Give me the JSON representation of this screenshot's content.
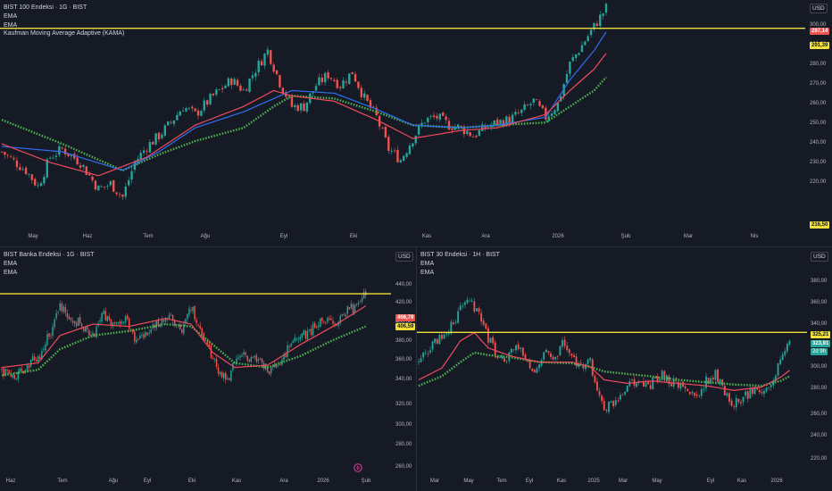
{
  "colors": {
    "bg": "#161a25",
    "grid": "#1f2330",
    "up": "#26a69a",
    "down": "#ef5350",
    "ema_fast": "#ef4b5d",
    "ema_slow": "#2f6ef0",
    "kama": "#4caf50",
    "level": "#f2e03a",
    "axis_text": "#b2b5be"
  },
  "charts": [
    {
      "id": "bist100",
      "legend": [
        "BIST 100 Endeksi · 1G · BIST",
        "EMA",
        "EMA",
        "Kaufman Moving Average Adaptive (KAMA)"
      ],
      "currency": "USD",
      "y_ticks": [
        "300,00",
        "290,00",
        "280,00",
        "270,00",
        "260,00",
        "250,00",
        "240,00",
        "230,00",
        "220,00"
      ],
      "x_ticks": [
        "May",
        "Haz",
        "Tem",
        "Ağu",
        "Eyl",
        "Eki",
        "Kas",
        "Ara",
        "2026",
        "Şub",
        "Mar",
        "Nis"
      ],
      "price_labels": [
        {
          "text": "297,14",
          "kind": "last",
          "value": 297.14
        },
        {
          "text": "291,39",
          "kind": "level",
          "value": 291.39
        },
        {
          "text": "216,50",
          "kind": "low",
          "value": 216.5
        }
      ],
      "chart_data": {
        "type": "candlestick",
        "ylim": [
          216.5,
          301
        ],
        "last": 297.14,
        "horizontal_level": 291.39,
        "anchors_close": [
          [
            0,
            245
          ],
          [
            8,
            238
          ],
          [
            12,
            232
          ],
          [
            16,
            243
          ],
          [
            20,
            246
          ],
          [
            26,
            241
          ],
          [
            32,
            231
          ],
          [
            36,
            233
          ],
          [
            40,
            228
          ],
          [
            44,
            241
          ],
          [
            48,
            247
          ],
          [
            52,
            251
          ],
          [
            56,
            256
          ],
          [
            60,
            262
          ],
          [
            64,
            259
          ],
          [
            70,
            266
          ],
          [
            76,
            272
          ],
          [
            80,
            268
          ],
          [
            84,
            276
          ],
          [
            88,
            283
          ],
          [
            92,
            271
          ],
          [
            96,
            262
          ],
          [
            100,
            262
          ],
          [
            104,
            270
          ],
          [
            108,
            274
          ],
          [
            112,
            270
          ],
          [
            116,
            275
          ],
          [
            120,
            265
          ],
          [
            124,
            258
          ],
          [
            128,
            246
          ],
          [
            132,
            242
          ],
          [
            136,
            250
          ],
          [
            140,
            257
          ],
          [
            144,
            258
          ],
          [
            148,
            255
          ],
          [
            152,
            254
          ],
          [
            156,
            251
          ],
          [
            160,
            254
          ],
          [
            164,
            256
          ],
          [
            168,
            257
          ],
          [
            172,
            260
          ],
          [
            176,
            264
          ],
          [
            180,
            258
          ],
          [
            184,
            263
          ],
          [
            188,
            278
          ],
          [
            192,
            285
          ],
          [
            196,
            292
          ],
          [
            200,
            299
          ]
        ],
        "ema_fast_anchors": [
          [
            0,
            248
          ],
          [
            16,
            241
          ],
          [
            32,
            236
          ],
          [
            48,
            243
          ],
          [
            64,
            255
          ],
          [
            80,
            262
          ],
          [
            90,
            268
          ],
          [
            96,
            266
          ],
          [
            110,
            264
          ],
          [
            124,
            257
          ],
          [
            136,
            250
          ],
          [
            152,
            253
          ],
          [
            164,
            254
          ],
          [
            180,
            259
          ],
          [
            188,
            268
          ],
          [
            196,
            276
          ],
          [
            200,
            282
          ]
        ],
        "ema_slow_anchors": [
          [
            0,
            247
          ],
          [
            20,
            245
          ],
          [
            40,
            238
          ],
          [
            52,
            245
          ],
          [
            64,
            254
          ],
          [
            80,
            260
          ],
          [
            90,
            265
          ],
          [
            96,
            268
          ],
          [
            110,
            267
          ],
          [
            124,
            261
          ],
          [
            136,
            255
          ],
          [
            152,
            254
          ],
          [
            164,
            255
          ],
          [
            180,
            258
          ],
          [
            188,
            272
          ],
          [
            196,
            283
          ],
          [
            200,
            290
          ]
        ],
        "kama_anchors": [
          [
            0,
            257
          ],
          [
            20,
            248
          ],
          [
            40,
            238
          ],
          [
            52,
            244
          ],
          [
            64,
            249
          ],
          [
            80,
            254
          ],
          [
            90,
            262
          ],
          [
            96,
            266
          ],
          [
            110,
            265
          ],
          [
            124,
            260
          ],
          [
            136,
            255
          ],
          [
            152,
            254
          ],
          [
            164,
            255
          ],
          [
            180,
            256
          ],
          [
            188,
            262
          ],
          [
            196,
            268
          ],
          [
            200,
            273
          ]
        ]
      }
    },
    {
      "id": "bist_banka",
      "legend": [
        "BIST Banka Endeksi · 1G · BIST",
        "EMA",
        "EMA"
      ],
      "currency": "USD",
      "y_ticks": [
        "440,00",
        "420,00",
        "400,00",
        "380,00",
        "360,00",
        "340,00",
        "320,00",
        "300,00",
        "280,00",
        "260,00"
      ],
      "x_ticks": [
        "Haz",
        "Tem",
        "Ağu",
        "Eyl",
        "Eki",
        "Kas",
        "Ara",
        "2026",
        "Şub"
      ],
      "price_labels": [
        {
          "text": "406,79",
          "kind": "last",
          "value": 406.79
        },
        {
          "text": "406,59",
          "kind": "level",
          "value": 406.59
        }
      ],
      "chart_data": {
        "type": "candlestick",
        "ylim": [
          258,
          445
        ],
        "last": 406.79,
        "horizontal_level": 406.59,
        "anchors_close": [
          [
            0,
            340
          ],
          [
            8,
            335
          ],
          [
            14,
            345
          ],
          [
            20,
            350
          ],
          [
            26,
            370
          ],
          [
            32,
            395
          ],
          [
            38,
            385
          ],
          [
            44,
            380
          ],
          [
            50,
            368
          ],
          [
            56,
            390
          ],
          [
            62,
            378
          ],
          [
            68,
            385
          ],
          [
            74,
            365
          ],
          [
            80,
            375
          ],
          [
            86,
            382
          ],
          [
            92,
            390
          ],
          [
            98,
            372
          ],
          [
            104,
            395
          ],
          [
            110,
            370
          ],
          [
            116,
            350
          ],
          [
            120,
            335
          ],
          [
            124,
            330
          ],
          [
            128,
            345
          ],
          [
            134,
            352
          ],
          [
            140,
            348
          ],
          [
            146,
            340
          ],
          [
            152,
            345
          ],
          [
            158,
            360
          ],
          [
            164,
            368
          ],
          [
            170,
            375
          ],
          [
            176,
            385
          ],
          [
            182,
            380
          ],
          [
            188,
            390
          ],
          [
            194,
            395
          ],
          [
            200,
            408
          ]
        ],
        "ema_fast_anchors": [
          [
            0,
            342
          ],
          [
            20,
            346
          ],
          [
            32,
            370
          ],
          [
            50,
            380
          ],
          [
            70,
            378
          ],
          [
            90,
            385
          ],
          [
            104,
            380
          ],
          [
            116,
            355
          ],
          [
            128,
            342
          ],
          [
            146,
            344
          ],
          [
            164,
            362
          ],
          [
            182,
            378
          ],
          [
            200,
            396
          ]
        ],
        "kama_anchors": [
          [
            0,
            335
          ],
          [
            20,
            340
          ],
          [
            32,
            358
          ],
          [
            50,
            370
          ],
          [
            70,
            374
          ],
          [
            90,
            380
          ],
          [
            104,
            378
          ],
          [
            116,
            362
          ],
          [
            128,
            346
          ],
          [
            146,
            342
          ],
          [
            164,
            352
          ],
          [
            182,
            366
          ],
          [
            200,
            378
          ]
        ]
      }
    },
    {
      "id": "bist30",
      "legend": [
        "BIST 30 Endeksi · 1H · BIST",
        "EMA",
        "EMA"
      ],
      "currency": "USD",
      "y_ticks": [
        "380,00",
        "360,00",
        "340,00",
        "320,00",
        "300,00",
        "280,00",
        "260,00",
        "240,00",
        "220,00"
      ],
      "x_ticks": [
        "Mar",
        "May",
        "Tem",
        "Eyl",
        "Kas",
        "2025",
        "Mar",
        "May",
        "Eyl",
        "Kas",
        "2026"
      ],
      "price_labels": [
        {
          "text": "325,21",
          "kind": "level",
          "value": 325.21
        },
        {
          "text": "323,91",
          "kind": "last",
          "value": 323.91
        },
        {
          "text": "2d 9h",
          "kind": "countdown"
        }
      ],
      "chart_data": {
        "type": "candlestick",
        "ylim": [
          212,
          395
        ],
        "last": 323.91,
        "horizontal_level": 325.21,
        "anchors_close": [
          [
            0,
            300
          ],
          [
            6,
            315
          ],
          [
            12,
            325
          ],
          [
            18,
            345
          ],
          [
            22,
            350
          ],
          [
            26,
            340
          ],
          [
            30,
            320
          ],
          [
            34,
            305
          ],
          [
            38,
            300
          ],
          [
            42,
            315
          ],
          [
            46,
            300
          ],
          [
            50,
            290
          ],
          [
            54,
            310
          ],
          [
            58,
            300
          ],
          [
            62,
            315
          ],
          [
            66,
            305
          ],
          [
            70,
            295
          ],
          [
            74,
            300
          ],
          [
            78,
            270
          ],
          [
            80,
            260
          ],
          [
            84,
            265
          ],
          [
            88,
            275
          ],
          [
            92,
            285
          ],
          [
            96,
            280
          ],
          [
            100,
            282
          ],
          [
            104,
            290
          ],
          [
            108,
            285
          ],
          [
            112,
            280
          ],
          [
            116,
            275
          ],
          [
            120,
            270
          ],
          [
            124,
            285
          ],
          [
            128,
            290
          ],
          [
            132,
            275
          ],
          [
            136,
            265
          ],
          [
            140,
            270
          ],
          [
            144,
            275
          ],
          [
            148,
            278
          ],
          [
            152,
            282
          ],
          [
            156,
            300
          ],
          [
            160,
            322
          ]
        ],
        "ema_fast_anchors": [
          [
            0,
            285
          ],
          [
            10,
            295
          ],
          [
            18,
            318
          ],
          [
            24,
            325
          ],
          [
            30,
            312
          ],
          [
            40,
            305
          ],
          [
            52,
            300
          ],
          [
            66,
            300
          ],
          [
            74,
            296
          ],
          [
            80,
            285
          ],
          [
            90,
            282
          ],
          [
            100,
            284
          ],
          [
            112,
            282
          ],
          [
            124,
            280
          ],
          [
            136,
            276
          ],
          [
            148,
            279
          ],
          [
            156,
            287
          ],
          [
            160,
            293
          ]
        ],
        "kama_anchors": [
          [
            0,
            280
          ],
          [
            10,
            288
          ],
          [
            18,
            300
          ],
          [
            24,
            308
          ],
          [
            30,
            306
          ],
          [
            40,
            304
          ],
          [
            52,
            300
          ],
          [
            66,
            299
          ],
          [
            74,
            296
          ],
          [
            80,
            292
          ],
          [
            90,
            290
          ],
          [
            100,
            288
          ],
          [
            112,
            285
          ],
          [
            124,
            283
          ],
          [
            136,
            281
          ],
          [
            148,
            280
          ],
          [
            156,
            284
          ],
          [
            160,
            288
          ]
        ]
      }
    }
  ]
}
